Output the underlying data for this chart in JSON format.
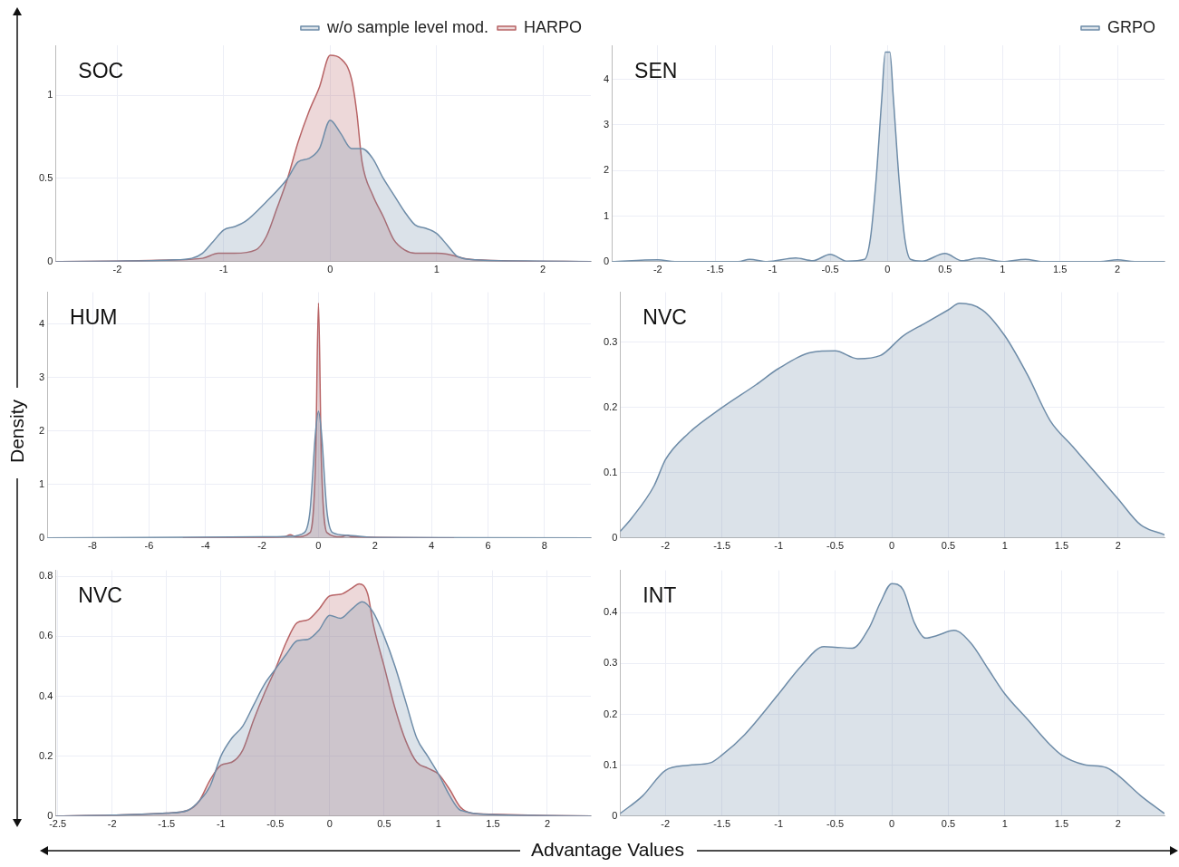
{
  "chart_data": [
    {
      "type": "area",
      "title": "SOC",
      "xlim": [
        -2.58,
        2.45
      ],
      "ylim": [
        0,
        1.3
      ],
      "xticks": [
        -2,
        -1,
        0,
        1,
        2
      ],
      "yticks": [
        0,
        0.5,
        1
      ],
      "grid": true,
      "legend": "top right",
      "series": [
        {
          "name": "w/o sample level mod.",
          "color": "#6e8ca8",
          "x": [
            -2.58,
            -2,
            -1.5,
            -1.3,
            -1.2,
            -1.1,
            -1.0,
            -0.9,
            -0.8,
            -0.6,
            -0.4,
            -0.3,
            -0.2,
            -0.1,
            0,
            0.1,
            0.2,
            0.3,
            0.4,
            0.5,
            0.6,
            0.7,
            0.8,
            0.9,
            1.0,
            1.1,
            1.2,
            1.4,
            2,
            2.45
          ],
          "values": [
            0,
            0.003,
            0.01,
            0.02,
            0.05,
            0.12,
            0.19,
            0.21,
            0.24,
            0.36,
            0.5,
            0.6,
            0.62,
            0.68,
            0.85,
            0.77,
            0.68,
            0.68,
            0.62,
            0.5,
            0.4,
            0.3,
            0.22,
            0.2,
            0.17,
            0.1,
            0.03,
            0.01,
            0.003,
            0
          ]
        },
        {
          "name": "HARPO",
          "color": "#b86466",
          "x": [
            -2.58,
            -2,
            -1.5,
            -1.2,
            -1.05,
            -0.9,
            -0.7,
            -0.6,
            -0.5,
            -0.4,
            -0.3,
            -0.2,
            -0.1,
            0,
            0.1,
            0.2,
            0.25,
            0.3,
            0.4,
            0.5,
            0.6,
            0.7,
            0.8,
            1.0,
            1.1,
            1.3,
            1.7,
            2.45
          ],
          "values": [
            0,
            0.003,
            0.01,
            0.02,
            0.05,
            0.05,
            0.07,
            0.15,
            0.32,
            0.5,
            0.72,
            0.9,
            1.05,
            1.24,
            1.22,
            1.1,
            0.9,
            0.6,
            0.4,
            0.27,
            0.13,
            0.07,
            0.05,
            0.05,
            0.045,
            0.015,
            0.005,
            0
          ]
        }
      ]
    },
    {
      "type": "area",
      "title": "SEN",
      "xlim": [
        -2.4,
        2.41
      ],
      "ylim": [
        0,
        4.75
      ],
      "xticks": [
        -2,
        -1.5,
        -1,
        -0.5,
        0,
        0.5,
        1,
        1.5,
        2
      ],
      "yticks": [
        0,
        1,
        2,
        3,
        4
      ],
      "grid": true,
      "legend": "top right",
      "series": [
        {
          "name": "GRPO",
          "color": "#6e8ca8",
          "x": [
            -2.4,
            -2,
            -1.85,
            -1.3,
            -1.2,
            -1.05,
            -0.8,
            -0.65,
            -0.5,
            -0.35,
            -0.2,
            -0.15,
            -0.1,
            -0.05,
            -0.02,
            0.02,
            0.05,
            0.1,
            0.15,
            0.2,
            0.3,
            0.5,
            0.65,
            0.8,
            1,
            1.2,
            1.35,
            1.85,
            2,
            2.15,
            2.41
          ],
          "values": [
            0,
            0.04,
            0,
            0,
            0.05,
            0,
            0.08,
            0.02,
            0.16,
            0.01,
            0.05,
            0.5,
            1.8,
            3.6,
            4.6,
            4.6,
            3.6,
            1.8,
            0.5,
            0.05,
            0.01,
            0.18,
            0.02,
            0.08,
            0,
            0.05,
            0,
            0,
            0.04,
            0,
            0
          ]
        }
      ]
    },
    {
      "type": "area",
      "title": "HUM",
      "ylabel": "Density",
      "xlim": [
        -9.6,
        9.64
      ],
      "ylim": [
        0,
        4.6
      ],
      "xticks": [
        -8,
        -6,
        -4,
        -2,
        0,
        2,
        4,
        6,
        8
      ],
      "yticks": [
        0,
        1,
        2,
        3,
        4
      ],
      "grid": true,
      "series": [
        {
          "color": "#6e8ca8",
          "x": [
            -9.6,
            -2,
            -1,
            -0.5,
            -0.3,
            -0.1,
            0,
            0.1,
            0.3,
            0.5,
            1,
            2,
            9.64
          ],
          "values": [
            0,
            0.02,
            0.03,
            0.1,
            0.5,
            2.0,
            2.37,
            2.0,
            0.5,
            0.1,
            0.05,
            0.01,
            0
          ]
        },
        {
          "color": "#b86466",
          "x": [
            -4.8,
            -2,
            -1.2,
            -1,
            -0.8,
            -0.3,
            -0.1,
            0,
            0.1,
            0.3,
            0.8,
            1,
            1.2,
            4.8
          ],
          "values": [
            0,
            0.01,
            0.02,
            0.06,
            0.02,
            0.1,
            1.5,
            4.4,
            1.5,
            0.1,
            0.02,
            0.05,
            0.02,
            0
          ]
        }
      ]
    },
    {
      "type": "area",
      "title": "NVC",
      "xlim": [
        -2.4,
        2.41
      ],
      "ylim": [
        0,
        0.377
      ],
      "xticks": [
        -2,
        -1.5,
        -1,
        -0.5,
        0,
        0.5,
        1,
        1.5,
        2
      ],
      "yticks": [
        0,
        0.1,
        0.2,
        0.3
      ],
      "grid": true,
      "series": [
        {
          "color": "#6e8ca8",
          "x": [
            -2.4,
            -2.3,
            -2.1,
            -2,
            -1.8,
            -1.5,
            -1.2,
            -1,
            -0.7,
            -0.5,
            -0.3,
            -0.1,
            0.1,
            0.3,
            0.5,
            0.6,
            0.8,
            1,
            1.2,
            1.4,
            1.6,
            1.8,
            2,
            2.2,
            2.41
          ],
          "values": [
            0.01,
            0.03,
            0.08,
            0.12,
            0.16,
            0.2,
            0.235,
            0.26,
            0.285,
            0.287,
            0.275,
            0.28,
            0.31,
            0.33,
            0.35,
            0.36,
            0.35,
            0.31,
            0.25,
            0.18,
            0.14,
            0.1,
            0.06,
            0.02,
            0.005
          ]
        }
      ]
    },
    {
      "type": "area",
      "title": "NVC",
      "xlabel": "Advantage Values",
      "xlim": [
        -2.52,
        2.4
      ],
      "ylim": [
        0,
        0.82
      ],
      "xticks": [
        -2.5,
        -2,
        -1.5,
        -1,
        -0.5,
        0,
        0.5,
        1,
        1.5,
        2
      ],
      "yticks": [
        0,
        0.2,
        0.4,
        0.6,
        0.8
      ],
      "grid": true,
      "series": [
        {
          "color": "#6e8ca8",
          "x": [
            -2.52,
            -2,
            -1.5,
            -1.3,
            -1.2,
            -1.1,
            -1.0,
            -0.9,
            -0.8,
            -0.7,
            -0.6,
            -0.5,
            -0.4,
            -0.3,
            -0.2,
            -0.1,
            0,
            0.1,
            0.2,
            0.3,
            0.4,
            0.5,
            0.6,
            0.7,
            0.8,
            0.9,
            1.0,
            1.1,
            1.2,
            1.5,
            2,
            2.4
          ],
          "values": [
            0,
            0.003,
            0.01,
            0.02,
            0.05,
            0.1,
            0.2,
            0.26,
            0.3,
            0.37,
            0.44,
            0.49,
            0.54,
            0.585,
            0.59,
            0.62,
            0.67,
            0.66,
            0.69,
            0.715,
            0.68,
            0.6,
            0.5,
            0.38,
            0.26,
            0.2,
            0.14,
            0.07,
            0.02,
            0.005,
            0.002,
            0
          ]
        },
        {
          "color": "#b86466",
          "x": [
            -2.52,
            -2,
            -1.5,
            -1.3,
            -1.2,
            -1.1,
            -1.0,
            -0.9,
            -0.8,
            -0.7,
            -0.6,
            -0.5,
            -0.4,
            -0.3,
            -0.2,
            -0.1,
            0,
            0.1,
            0.2,
            0.27,
            0.35,
            0.4,
            0.5,
            0.6,
            0.7,
            0.8,
            0.9,
            1.0,
            1.1,
            1.2,
            1.3,
            1.5,
            2,
            2.4
          ],
          "values": [
            0,
            0.003,
            0.01,
            0.02,
            0.05,
            0.12,
            0.17,
            0.18,
            0.22,
            0.32,
            0.41,
            0.49,
            0.58,
            0.645,
            0.655,
            0.69,
            0.735,
            0.74,
            0.76,
            0.775,
            0.74,
            0.64,
            0.5,
            0.36,
            0.25,
            0.18,
            0.16,
            0.14,
            0.09,
            0.03,
            0.01,
            0.006,
            0.002,
            0
          ]
        }
      ]
    },
    {
      "type": "area",
      "title": "INT",
      "xlim": [
        -2.4,
        2.41
      ],
      "ylim": [
        0,
        0.483
      ],
      "xticks": [
        -2,
        -1.5,
        -1,
        -0.5,
        0,
        0.5,
        1,
        1.5,
        2
      ],
      "yticks": [
        0,
        0.1,
        0.2,
        0.3,
        0.4
      ],
      "grid": true,
      "series": [
        {
          "color": "#6e8ca8",
          "x": [
            -2.4,
            -2.2,
            -2,
            -1.8,
            -1.6,
            -1.5,
            -1.3,
            -1,
            -0.8,
            -0.6,
            -0.5,
            -0.35,
            -0.2,
            -0.1,
            0,
            0.1,
            0.2,
            0.3,
            0.4,
            0.55,
            0.7,
            0.85,
            1,
            1.2,
            1.4,
            1.5,
            1.7,
            1.9,
            2,
            2.2,
            2.41
          ],
          "values": [
            0.005,
            0.04,
            0.09,
            0.1,
            0.105,
            0.12,
            0.16,
            0.24,
            0.295,
            0.333,
            0.332,
            0.33,
            0.37,
            0.42,
            0.457,
            0.445,
            0.38,
            0.35,
            0.355,
            0.365,
            0.34,
            0.29,
            0.24,
            0.19,
            0.14,
            0.12,
            0.101,
            0.095,
            0.08,
            0.04,
            0.005
          ]
        }
      ]
    }
  ]
}
